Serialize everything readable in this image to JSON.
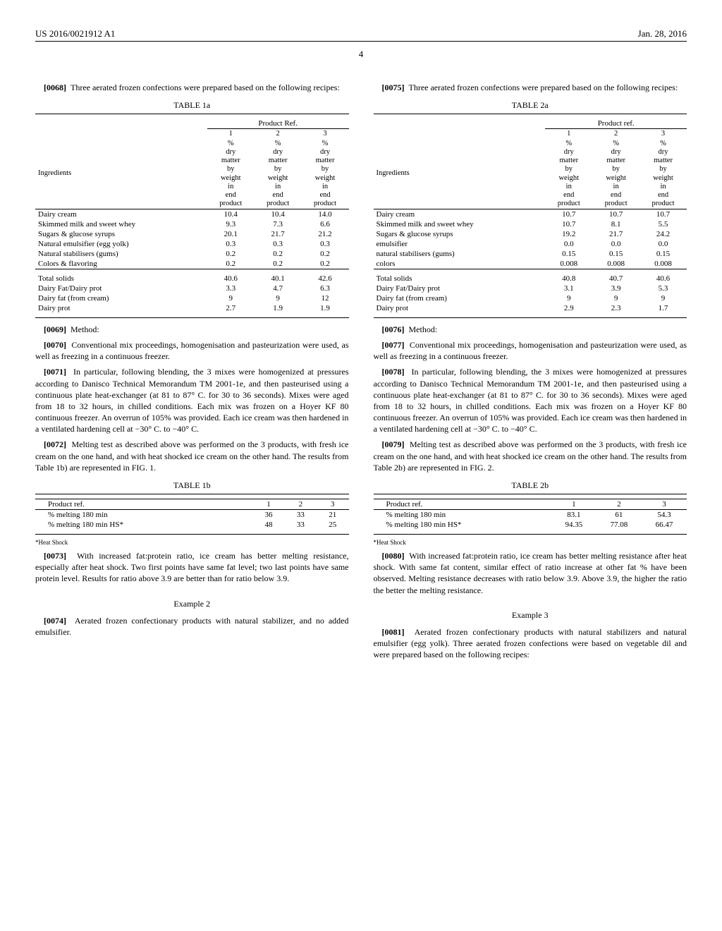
{
  "header": {
    "pub_no": "US 2016/0021912 A1",
    "date": "Jan. 28, 2016"
  },
  "page_number": "4",
  "left": {
    "p0068": "Three aerated frozen confections were prepared based on the following recipes:",
    "p0068_num": "[0068]",
    "table1a_title": "TABLE 1a",
    "table1a": {
      "group_header": "Product Ref.",
      "col_labels": [
        "1",
        "2",
        "3"
      ],
      "sub_labels": [
        "% dry matter by weight in end product",
        "% dry matter by weight in end product",
        "% dry matter by weight in end product"
      ],
      "ingredients_label": "Ingredients",
      "rows": [
        {
          "name": "Dairy cream",
          "v": [
            "10.4",
            "10.4",
            "14.0"
          ]
        },
        {
          "name": "Skimmed milk and sweet whey",
          "v": [
            "9.3",
            "7.3",
            "6.6"
          ]
        },
        {
          "name": "Sugars & glucose syrups",
          "v": [
            "20.1",
            "21.7",
            "21.2"
          ]
        },
        {
          "name": "Natural emulsifier (egg yolk)",
          "v": [
            "0.3",
            "0.3",
            "0.3"
          ]
        },
        {
          "name": "Natural stabilisers (gums)",
          "v": [
            "0.2",
            "0.2",
            "0.2"
          ]
        },
        {
          "name": "Colors & flavoring",
          "v": [
            "0.2",
            "0.2",
            "0.2"
          ]
        }
      ],
      "summary": [
        {
          "name": "Total solids",
          "v": [
            "40.6",
            "40.1",
            "42.6"
          ]
        },
        {
          "name": "Dairy Fat/Dairy prot",
          "v": [
            "3.3",
            "4.7",
            "6.3"
          ]
        },
        {
          "name": "Dairy fat (from cream)",
          "v": [
            "9",
            "9",
            "12"
          ]
        },
        {
          "name": "Dairy prot",
          "v": [
            "2.7",
            "1.9",
            "1.9"
          ]
        }
      ]
    },
    "p0069_num": "[0069]",
    "p0069": "Method:",
    "p0070_num": "[0070]",
    "p0070": "Conventional mix proceedings, homogenisation and pasteurization were used, as well as freezing in a continuous freezer.",
    "p0071_num": "[0071]",
    "p0071": "In particular, following blending, the 3 mixes were homogenized at pressures according to Danisco Technical Memorandum TM 2001-1e, and then pasteurised using a continuous plate heat-exchanger (at 81 to 87° C. for 30 to 36 seconds). Mixes were aged from 18 to 32 hours, in chilled conditions. Each mix was frozen on a Hoyer KF 80 continuous freezer. An overrun of 105% was provided. Each ice cream was then hardened in a ventilated hardening cell at −30° C. to −40° C.",
    "p0072_num": "[0072]",
    "p0072": "Melting test as described above was performed on the 3 products, with fresh ice cream on the one hand, and with heat shocked ice cream on the other hand. The results from Table 1b) are represented in FIG. 1.",
    "table1b_title": "TABLE 1b",
    "table1b": {
      "header": "Product ref.",
      "cols": [
        "1",
        "2",
        "3"
      ],
      "rows": [
        {
          "name": "% melting 180 min",
          "v": [
            "36",
            "33",
            "21"
          ]
        },
        {
          "name": "% melting 180 min HS*",
          "v": [
            "48",
            "33",
            "25"
          ]
        }
      ]
    },
    "hs_note": "*Heat Shock",
    "p0073_num": "[0073]",
    "p0073": "With increased fat:protein ratio, ice cream has better melting resistance, especially after heat shock. Two first points have same fat level; two last points have same protein level. Results for ratio above 3.9 are better than for ratio below 3.9.",
    "ex2": "Example 2",
    "p0074_num": "[0074]",
    "p0074": "Aerated frozen confectionary products with natural stabilizer, and no added emulsifier."
  },
  "right": {
    "p0075_num": "[0075]",
    "p0075": "Three aerated frozen confections were prepared based on the following recipes:",
    "table2a_title": "TABLE 2a",
    "table2a": {
      "group_header": "Product ref.",
      "col_labels": [
        "1",
        "2",
        "3"
      ],
      "sub_labels": [
        "% dry matter by weight in end product",
        "% dry matter by weight in end product",
        "% dry matter by weight in end product"
      ],
      "ingredients_label": "Ingredients",
      "rows": [
        {
          "name": "Dairy cream",
          "v": [
            "10.7",
            "10.7",
            "10.7"
          ]
        },
        {
          "name": "Skimmed milk and sweet whey",
          "v": [
            "10.7",
            "8.1",
            "5.5"
          ]
        },
        {
          "name": "Sugars & glucose syrups",
          "v": [
            "19.2",
            "21.7",
            "24.2"
          ]
        },
        {
          "name": "emulsifier",
          "v": [
            "0.0",
            "0.0",
            "0.0"
          ]
        },
        {
          "name": "natural stabilisers (gums)",
          "v": [
            "0.15",
            "0.15",
            "0.15"
          ]
        },
        {
          "name": "colors",
          "v": [
            "0.008",
            "0.008",
            "0.008"
          ]
        }
      ],
      "summary": [
        {
          "name": "Total solids",
          "v": [
            "40.8",
            "40.7",
            "40.6"
          ]
        },
        {
          "name": "Dairy Fat/Dairy prot",
          "v": [
            "3.1",
            "3.9",
            "5.3"
          ]
        },
        {
          "name": "Dairy fat (from cream)",
          "v": [
            "9",
            "9",
            "9"
          ]
        },
        {
          "name": "Dairy prot",
          "v": [
            "2.9",
            "2.3",
            "1.7"
          ]
        }
      ]
    },
    "p0076_num": "[0076]",
    "p0076": "Method:",
    "p0077_num": "[0077]",
    "p0077": "Conventional mix proceedings, homogenisation and pasteurization were used, as well as freezing in a continuous freezer.",
    "p0078_num": "[0078]",
    "p0078": "In particular, following blending, the 3 mixes were homogenized at pressures according to Danisco Technical Memorandum TM 2001-1e, and then pasteurised using a continuous plate heat-exchanger (at 81 to 87° C. for 30 to 36 seconds). Mixes were aged from 18 to 32 hours, in chilled conditions. Each mix was frozen on a Hoyer KF 80 continuous freezer. An overrun of 105% was provided. Each ice cream was then hardened in a ventilated hardening cell at −30° C. to −40° C.",
    "p0079_num": "[0079]",
    "p0079": "Melting test as described above was performed on the 3 products, with fresh ice cream on the one hand, and with heat shocked ice cream on the other hand. The results from Table 2b) are represented in FIG. 2.",
    "table2b_title": "TABLE 2b",
    "table2b": {
      "header": "Product ref.",
      "cols": [
        "1",
        "2",
        "3"
      ],
      "rows": [
        {
          "name": "% melting 180 min",
          "v": [
            "83.1",
            "61",
            "54.3"
          ]
        },
        {
          "name": "% melting 180 min HS*",
          "v": [
            "94.35",
            "77.08",
            "66.47"
          ]
        }
      ]
    },
    "hs_note": "*Heat Shock",
    "p0080_num": "[0080]",
    "p0080": "With increased fat:protein ratio, ice cream has better melting resistance after heat shock. With same fat content, similar effect of ratio increase at other fat % have been observed. Melting resistance decreases with ratio below 3.9. Above 3.9, the higher the ratio the better the melting resistance.",
    "ex3": "Example 3",
    "p0081_num": "[0081]",
    "p0081": "Aerated frozen confectionary products with natural stabilizers and natural emulsifier (egg yolk). Three aerated frozen confections were based on vegetable dil and were prepared based on the following recipes:"
  }
}
